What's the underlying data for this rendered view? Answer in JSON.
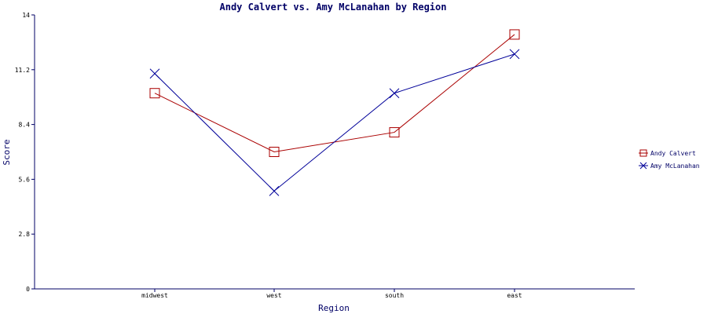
{
  "chart_data": {
    "type": "line",
    "title": "Andy Calvert vs. Amy McLanahan by Region",
    "xlabel": "Region",
    "ylabel": "Score",
    "categories": [
      "midwest",
      "west",
      "south",
      "east"
    ],
    "ylim": [
      0,
      14
    ],
    "yticks": [
      "0",
      "2.8",
      "5.6",
      "8.4",
      "11.2",
      "14"
    ],
    "grid": false,
    "legend_position": "right",
    "series": [
      {
        "name": "Andy Calvert",
        "values": [
          10,
          7,
          8,
          13
        ],
        "color": "#aa0000",
        "marker": "square"
      },
      {
        "name": "Amy McLanahan",
        "values": [
          11,
          5,
          10,
          12
        ],
        "color": "#000099",
        "marker": "cross"
      }
    ]
  }
}
